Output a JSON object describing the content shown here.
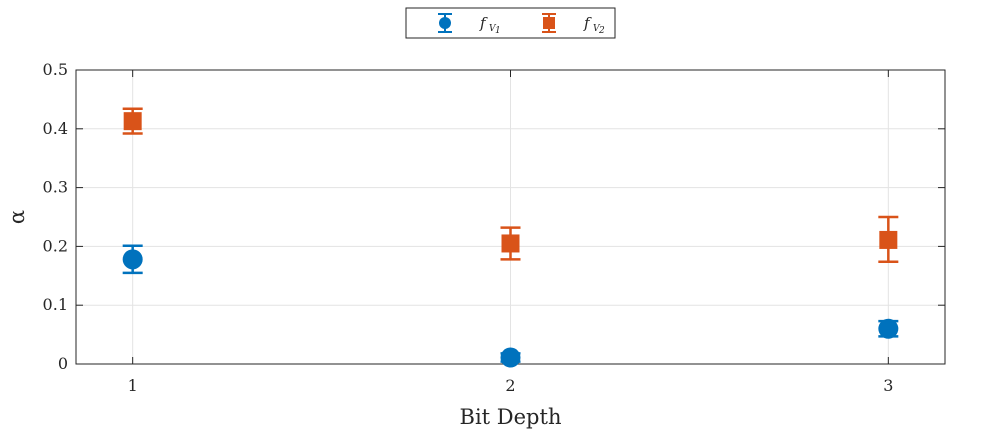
{
  "chart_data": {
    "type": "scatter",
    "title": "",
    "xlabel": "Bit Depth",
    "ylabel": "α",
    "xlim": [
      0.85,
      3.15
    ],
    "ylim": [
      0,
      0.5
    ],
    "x_ticks": [
      "1",
      "2",
      "3"
    ],
    "y_ticks": [
      "0",
      "0.1",
      "0.2",
      "0.3",
      "0.4",
      "0.5"
    ],
    "grid": true,
    "legend_placement": "top-center, outside",
    "series": [
      {
        "name": "f_V1",
        "legend_main": "f",
        "legend_sub": "V",
        "legend_subsub": "1",
        "marker": "circle",
        "color": "#0072BD",
        "x": [
          1,
          2,
          3
        ],
        "y": [
          0.178,
          0.011,
          0.06
        ],
        "err_low": [
          0.155,
          0.004,
          0.047
        ],
        "err_high": [
          0.201,
          0.018,
          0.073
        ]
      },
      {
        "name": "f_V2",
        "legend_main": "f",
        "legend_sub": "V",
        "legend_subsub": "2",
        "marker": "square",
        "color": "#D95319",
        "x": [
          1,
          2,
          3
        ],
        "y": [
          0.413,
          0.205,
          0.211
        ],
        "err_low": [
          0.392,
          0.178,
          0.174
        ],
        "err_high": [
          0.434,
          0.232,
          0.25
        ]
      }
    ]
  }
}
